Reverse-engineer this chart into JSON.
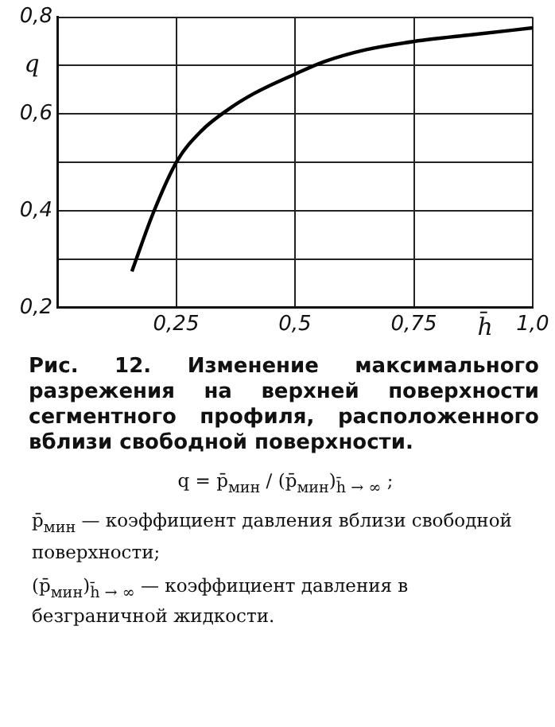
{
  "chart_data": {
    "type": "line",
    "title": "Рис. 12. Изменение максимального разрежения на верхней поверхности сегментного профиля, расположенного вблизи свободной поверхности.",
    "xlabel": "h̄",
    "ylabel": "q",
    "xlim": [
      0,
      1
    ],
    "ylim": [
      0.2,
      0.8
    ],
    "xticks": [
      {
        "value": 0,
        "label": null
      },
      {
        "value": 0.25,
        "label": "0,25"
      },
      {
        "value": 0.5,
        "label": "0,5"
      },
      {
        "value": 0.75,
        "label": "0,75"
      },
      {
        "value": 1,
        "label": "1,0"
      }
    ],
    "yticks": [
      {
        "value": 0.2,
        "label": "0,2"
      },
      {
        "value": 0.3,
        "label": null
      },
      {
        "value": 0.4,
        "label": "0,4"
      },
      {
        "value": 0.5,
        "label": null
      },
      {
        "value": 0.6,
        "label": "0,6"
      },
      {
        "value": 0.7,
        "label": null
      },
      {
        "value": 0.8,
        "label": "0,8"
      }
    ],
    "grid": true,
    "marker": "none",
    "line_style": "solid",
    "series": [
      {
        "color": "#000000",
        "x": [
          0.157,
          0.202,
          0.252,
          0.303,
          0.359,
          0.415,
          0.499,
          0.561,
          0.65,
          0.751,
          0.874,
          1.0
        ],
        "values": [
          0.275,
          0.396,
          0.503,
          0.565,
          0.609,
          0.643,
          0.682,
          0.708,
          0.733,
          0.75,
          0.764,
          0.778
        ]
      }
    ],
    "annotations": [
      "q = p̄$_{мин}$ / (p̄$_{мин}$)$_{h̄ → ∞}$ ;",
      "p̄$_{мин}$ — коэффициент давления вблизи свободной поверхности;",
      "(p̄$_{мин}$)$_{h̄ → ∞}$ — коэффициент давления в безграничной жидкости."
    ]
  }
}
